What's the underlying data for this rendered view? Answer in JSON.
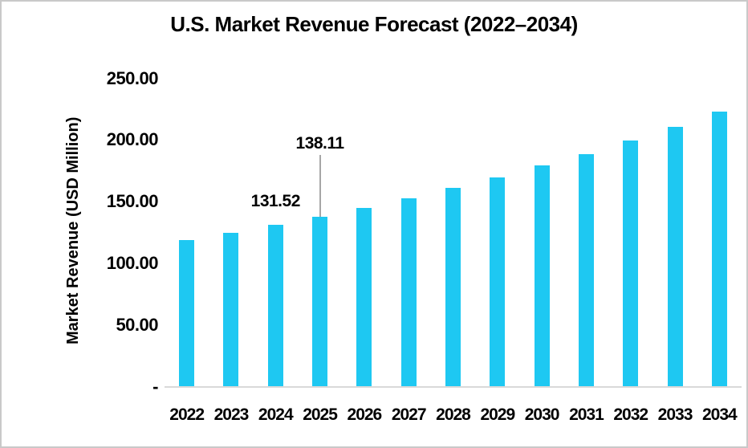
{
  "title": "U.S. Market Revenue Forecast (2022–2034)",
  "colors": {
    "bar": "#1EC8F2",
    "axis_line": "#D9D9D9",
    "leader_line": "#A6A6A6",
    "text": "#000000",
    "canvas_border": "#C9C9C9"
  },
  "chart_data": {
    "type": "bar",
    "title": "U.S. Market Revenue Forecast (2022–2034)",
    "xlabel": "",
    "ylabel": "Market Revenue (USD Million)",
    "categories": [
      "2022",
      "2023",
      "2024",
      "2025",
      "2026",
      "2027",
      "2028",
      "2029",
      "2030",
      "2031",
      "2032",
      "2033",
      "2034"
    ],
    "values": [
      119.0,
      125.0,
      131.52,
      138.11,
      145.0,
      152.5,
      161.5,
      170.0,
      179.5,
      188.5,
      199.5,
      210.5,
      223.0
    ],
    "ylim": [
      0,
      250
    ],
    "ytick_interval": 50,
    "ytick_labels_top_to_bottom": [
      "250.00",
      "200.00",
      "150.00",
      "100.00",
      "50.00",
      "-"
    ],
    "grid": false,
    "legend": false,
    "bar_color": "#1EC8F2",
    "data_labels": [
      {
        "category": "2024",
        "text": "131.52",
        "leader_line": false
      },
      {
        "category": "2025",
        "text": "138.11",
        "leader_line": true
      }
    ]
  }
}
